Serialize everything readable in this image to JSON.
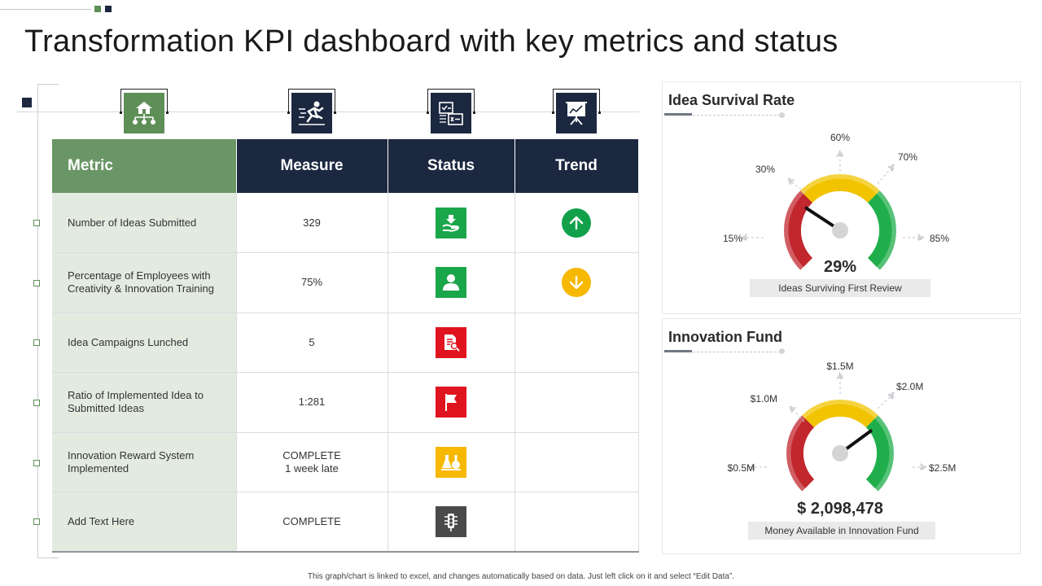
{
  "page": {
    "title": "Transformation KPI dashboard with key metrics and status"
  },
  "table": {
    "headers": {
      "metric": "Metric",
      "measure": "Measure",
      "status": "Status",
      "trend": "Trend"
    },
    "rows": [
      {
        "metric": "Number of Ideas Submitted",
        "measure": "329",
        "status_icon": "handshake-icon",
        "status_color": "#1aa64a",
        "trend": "up-arrow-icon",
        "trend_color": "#12a04b"
      },
      {
        "metric": "Percentage of Employees with Creativity & Innovation Training",
        "measure": "75%",
        "status_icon": "user-icon",
        "status_color": "#1aa64a",
        "trend": "down-arrow-icon",
        "trend_color": "#f6b800"
      },
      {
        "metric": "Idea Campaigns Lunched",
        "measure": "5",
        "status_icon": "document-search-icon",
        "status_color": "#e0141e",
        "trend": "",
        "trend_color": ""
      },
      {
        "metric": "Ratio of Implemented Idea to Submitted Ideas",
        "measure": "1:281",
        "status_icon": "flag-icon",
        "status_color": "#e0141e",
        "trend": "",
        "trend_color": ""
      },
      {
        "metric": "Innovation Reward System Implemented",
        "measure": "COMPLETE\n1 week late",
        "status_icon": "lab-flask-icon",
        "status_color": "#f6b800",
        "trend": "",
        "trend_color": ""
      },
      {
        "metric": "Add Text Here",
        "measure": "COMPLETE",
        "status_icon": "traffic-light-icon",
        "status_color": "#4a4a4a",
        "trend": "",
        "trend_color": ""
      }
    ]
  },
  "column_icons": [
    {
      "name": "org-chart-house-icon",
      "color": "#5e8f57"
    },
    {
      "name": "runner-icon",
      "color": "#1c2740"
    },
    {
      "name": "checklist-icon",
      "color": "#1c2740"
    },
    {
      "name": "presentation-board-icon",
      "color": "#1c2740"
    }
  ],
  "gauges": {
    "idea_survival": {
      "title": "Idea Survival Rate",
      "value_label": "29%",
      "value": 29,
      "caption": "Ideas Surviving First Review",
      "ticks": [
        "15%",
        "30%",
        "60%",
        "70%",
        "85%"
      ]
    },
    "innovation_fund": {
      "title": "Innovation Fund",
      "value_label": "$ 2,098,478",
      "value": 2098478,
      "caption": "Money Available in Innovation Fund",
      "ticks": [
        "$0.5M",
        "$1.0M",
        "$1.5M",
        "$2.0M",
        "$2.5M"
      ]
    }
  },
  "colors": {
    "green": "#6a9566",
    "navy": "#1c2740",
    "gauge_red": "#c1272d",
    "gauge_yellow": "#f2c400",
    "gauge_green": "#1fae4b"
  },
  "footnote": "This graph/chart is linked to excel, and changes automatically based on data. Just left click on it and select “Edit Data”."
}
